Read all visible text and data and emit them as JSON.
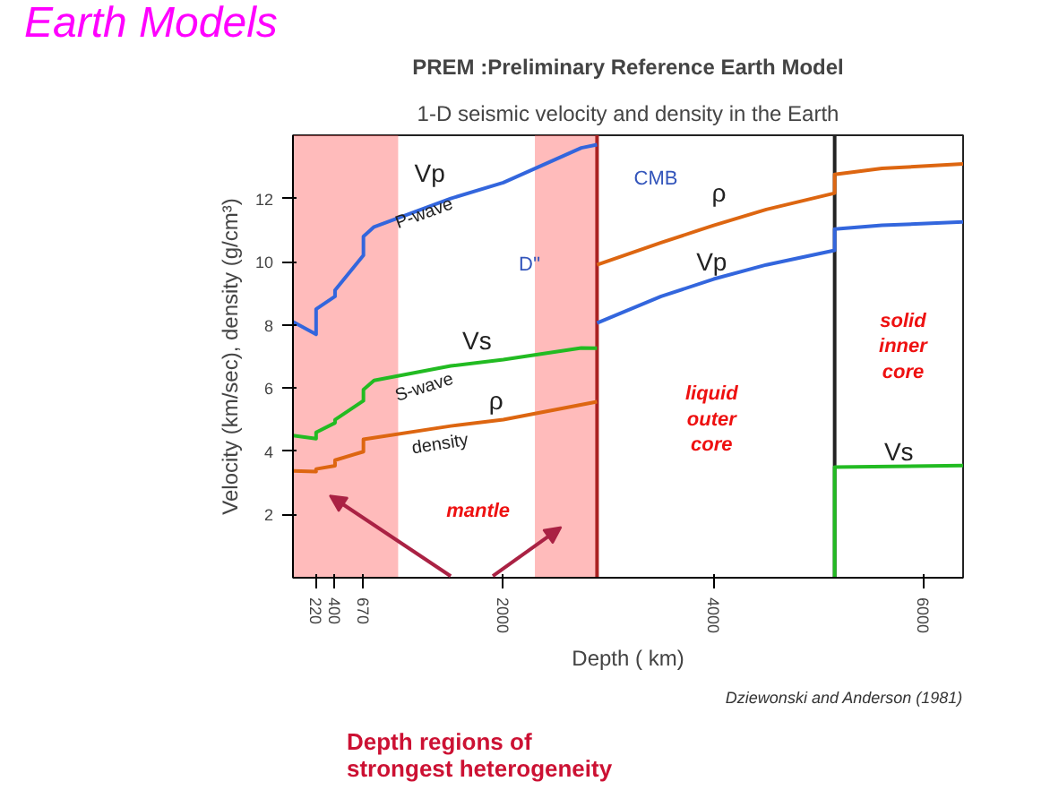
{
  "chart_data": {
    "type": "line",
    "title": "PREM :Preliminary Reference Earth Model",
    "subtitle": "1-D seismic velocity and density in the Earth",
    "xlabel": "Depth ( km)",
    "ylabel": "Velocity (km/sec), density (g/cm³)",
    "xlim": [
      0,
      6371
    ],
    "ylim": [
      0,
      14
    ],
    "xticks": [
      220,
      400,
      670,
      2000,
      4000,
      6000
    ],
    "yticks": [
      2,
      4,
      6,
      8,
      10,
      12
    ],
    "grid": false,
    "marker": "none",
    "line_style": "solid",
    "series": [
      {
        "color": "#3366dd",
        "x": [
          0,
          220,
          220,
          400,
          400,
          670,
          670,
          771,
          1500,
          2000,
          2741,
          2891
        ],
        "values": [
          8.1,
          7.7,
          8.5,
          8.9,
          9.1,
          10.2,
          10.8,
          11.1,
          12.0,
          12.5,
          13.6,
          13.7
        ]
      },
      {
        "color": "#22bb22",
        "x": [
          0,
          220,
          220,
          400,
          400,
          670,
          670,
          771,
          1500,
          2000,
          2741,
          2891
        ],
        "values": [
          4.5,
          4.4,
          4.6,
          4.9,
          5.0,
          5.6,
          5.95,
          6.24,
          6.7,
          6.9,
          7.27,
          7.26
        ]
      },
      {
        "color": "#dd6611",
        "x": [
          0,
          220,
          220,
          400,
          400,
          670,
          670,
          1500,
          2000,
          2891
        ],
        "values": [
          3.38,
          3.36,
          3.44,
          3.54,
          3.72,
          3.99,
          4.38,
          4.8,
          5.0,
          5.57
        ]
      },
      {
        "color": "#3366dd",
        "x": [
          2891,
          3500,
          4000,
          4500,
          5150,
          5150,
          5600,
          6371
        ],
        "values": [
          8.06,
          8.9,
          9.45,
          9.9,
          10.36,
          11.03,
          11.15,
          11.26
        ]
      },
      {
        "color": "#dd6611",
        "x": [
          2891,
          3500,
          4000,
          4500,
          5150,
          5150,
          5600,
          6371
        ],
        "values": [
          9.9,
          10.6,
          11.15,
          11.65,
          12.17,
          12.76,
          12.95,
          13.09
        ]
      },
      {
        "color": "#22bb22",
        "x": [
          5150,
          5150,
          6371
        ],
        "values": [
          0,
          3.5,
          3.55
        ]
      }
    ],
    "bands": [
      {
        "axis": "x",
        "from": 0,
        "to": 1000,
        "color": "#ff5555"
      },
      {
        "axis": "x",
        "from": 2300,
        "to": 2891,
        "color": "#ff5555"
      }
    ],
    "ref_lines": [
      {
        "axis": "x",
        "value": 2891,
        "color": "#aa2222"
      },
      {
        "axis": "x",
        "value": 5150,
        "color": "#222222"
      }
    ],
    "annotations": [
      "Vp",
      "P-wave",
      "D''",
      "CMB",
      "Vs",
      "S-wave",
      "ρ",
      "density",
      "mantle",
      "ρ",
      "Vp",
      "liquid outer core",
      "solid inner core",
      "Vs",
      "Earth Models",
      "Depth regions of strongest heterogeneity",
      "Dziewonski and Anderson (1981)"
    ]
  }
}
